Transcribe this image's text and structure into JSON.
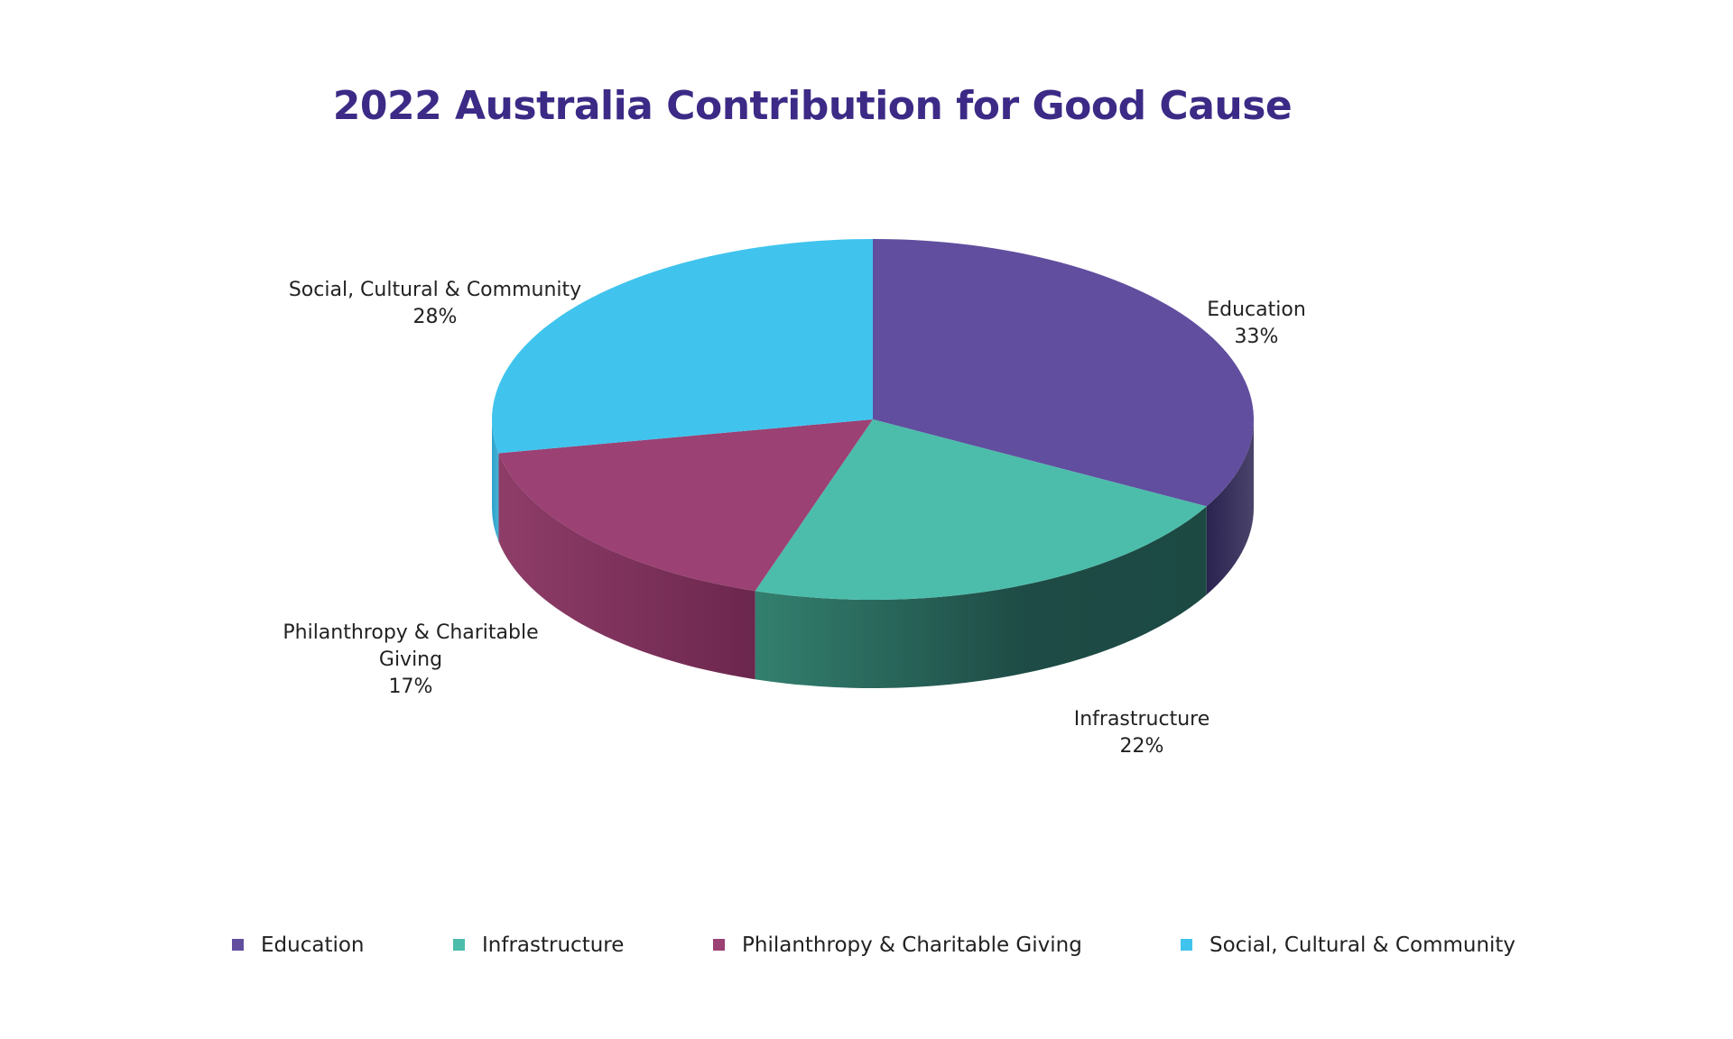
{
  "chart_data": {
    "type": "pie",
    "title": "2022 Australia Contribution for Good Cause",
    "categories": [
      "Education",
      "Infrastructure",
      "Philanthropy & Charitable Giving",
      "Social, Cultural & Community"
    ],
    "values": [
      33,
      22,
      17,
      28
    ],
    "unit": "%",
    "data_labels": [
      {
        "lines": [
          "Education",
          "33%"
        ]
      },
      {
        "lines": [
          "Infrastructure",
          "22%"
        ]
      },
      {
        "lines": [
          "Philanthropy & Charitable",
          "Giving",
          "17%"
        ]
      },
      {
        "lines": [
          "Social, Cultural & Community",
          "28%"
        ]
      }
    ],
    "colors": [
      "#614e9f",
      "#4cbdab",
      "#9b4173",
      "#40c4ee"
    ],
    "side_colors": [
      "#2a2250",
      "#1f4f47",
      "#7a2d57",
      "#2aa3cc"
    ],
    "title_color": "#3c2a86",
    "style": "3d-tilted",
    "legend": "bottom"
  }
}
